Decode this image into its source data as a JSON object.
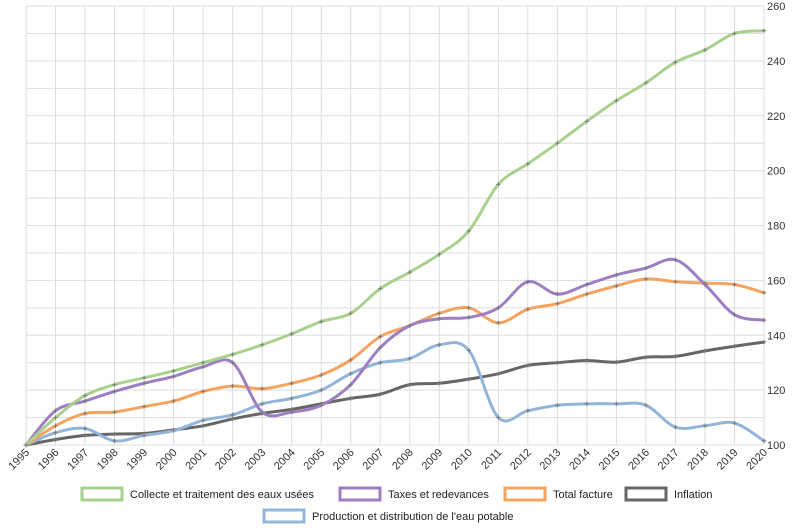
{
  "chart_data": {
    "type": "line",
    "x": [
      "1995",
      "1996",
      "1997",
      "1998",
      "1999",
      "2000",
      "2001",
      "2002",
      "2003",
      "2004",
      "2005",
      "2006",
      "2007",
      "2008",
      "2009",
      "2010",
      "2011",
      "2012",
      "2013",
      "2014",
      "2015",
      "2016",
      "2017",
      "2018",
      "2019",
      "2020"
    ],
    "ylim": [
      100,
      260
    ],
    "yticks": [
      100,
      120,
      140,
      160,
      180,
      200,
      220,
      240,
      260
    ],
    "y_axis_side": "right",
    "grid": true,
    "legend_position": "bottom",
    "series": [
      {
        "name": "Collecte et traitement des eaux usées",
        "color": "#a9d18e",
        "values": [
          100,
          110,
          118,
          122,
          124.5,
          127,
          130,
          133,
          136.5,
          140.5,
          145,
          148,
          157,
          163,
          169.5,
          178,
          195,
          202.5,
          210,
          218,
          225.5,
          232,
          239.5,
          244,
          250,
          251
        ]
      },
      {
        "name": "Taxes et redevances",
        "color": "#9e7fc1",
        "values": [
          100,
          112.5,
          116,
          119.5,
          122.5,
          125,
          128.5,
          130,
          112,
          112,
          114.5,
          122,
          135.5,
          143.5,
          146,
          146.5,
          150,
          159.5,
          155,
          158.5,
          162,
          164.5,
          167.5,
          158.5,
          147.5,
          145.5
        ]
      },
      {
        "name": "Total facture",
        "color": "#f4a460",
        "values": [
          100,
          107,
          111.5,
          112,
          114,
          116,
          119.5,
          121.5,
          120.5,
          122.5,
          125.5,
          131,
          139.5,
          143.5,
          148,
          150,
          144.5,
          149.5,
          151.5,
          155,
          158,
          160.5,
          159.5,
          159,
          158.5,
          155.5
        ]
      },
      {
        "name": "Inflation",
        "color": "#666666",
        "values": [
          100,
          102,
          103.5,
          104,
          104.2,
          105.5,
          107,
          109.5,
          111.5,
          113,
          115,
          117,
          118.5,
          122,
          122.5,
          124,
          126,
          129,
          130,
          130.8,
          130.2,
          132,
          132.3,
          134.3,
          136,
          137.5
        ]
      },
      {
        "name": "Production et distribution de l'eau potable",
        "color": "#92b5d9",
        "values": [
          100,
          104.5,
          106,
          101.5,
          103.5,
          105.2,
          109,
          111,
          115,
          117,
          120,
          126,
          130,
          131.5,
          136.5,
          134.5,
          110,
          112.5,
          114.5,
          115,
          115,
          114.5,
          106.5,
          107,
          108,
          101.5
        ]
      }
    ]
  }
}
